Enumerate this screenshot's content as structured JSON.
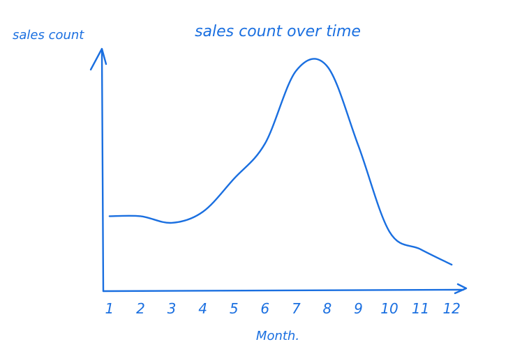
{
  "chart_data": {
    "type": "line",
    "title": "sales count over time",
    "xlabel": "Month.",
    "ylabel": "sales count",
    "ink_color": "#1a6fe0",
    "categories": [
      "1",
      "2",
      "3",
      "4",
      "5",
      "6",
      "7",
      "8",
      "9",
      "10",
      "11",
      "12"
    ],
    "x": [
      1,
      2,
      3,
      4,
      5,
      6,
      7,
      8,
      9,
      10,
      11,
      12
    ],
    "values": [
      34,
      34,
      31,
      36,
      51,
      67,
      100,
      102,
      66,
      27,
      19,
      12
    ],
    "xlim": [
      0.8,
      12.4
    ],
    "ylim": [
      0,
      110
    ],
    "grid": false,
    "legend": "none"
  }
}
